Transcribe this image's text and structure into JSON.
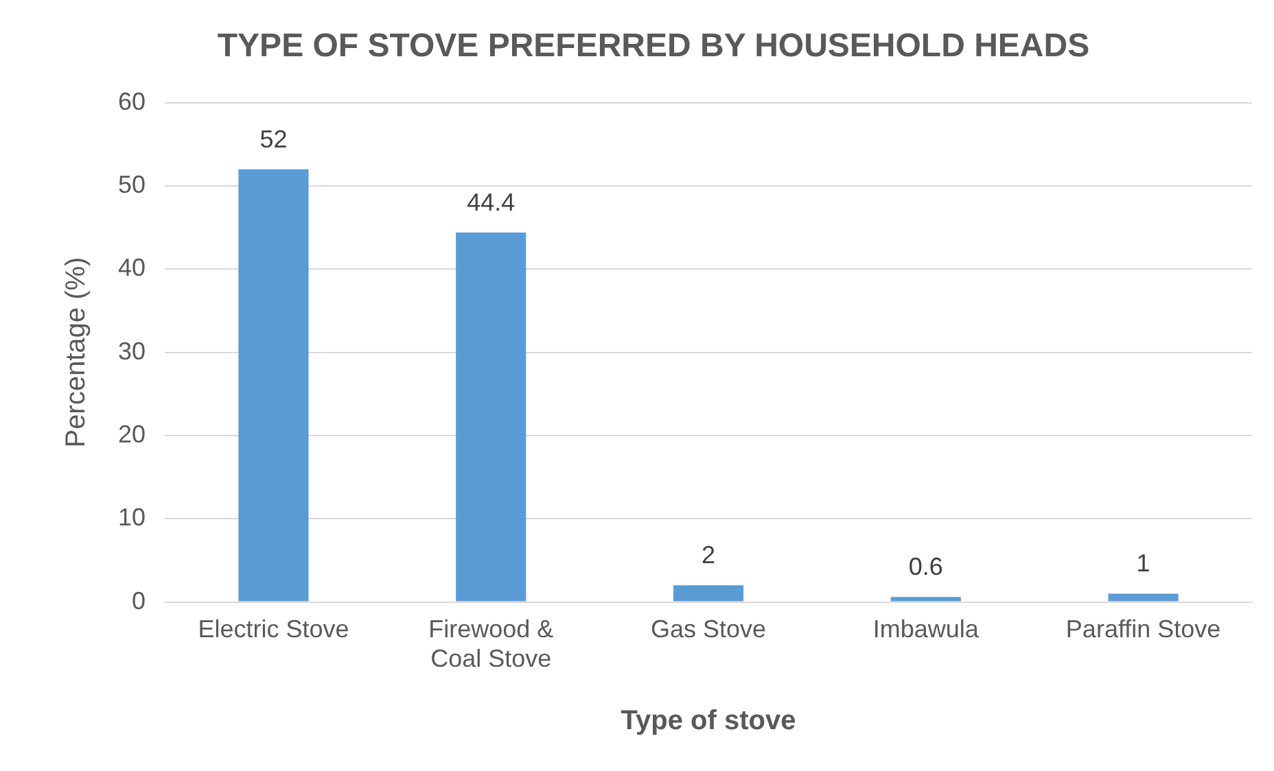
{
  "chart_data": {
    "type": "bar",
    "title": "TYPE OF STOVE PREFERRED BY HOUSEHOLD HEADS",
    "xlabel": "Type of stove",
    "ylabel": "Percentage (%)",
    "categories": [
      "Electric Stove",
      "Firewood & Coal Stove",
      "Gas Stove",
      "Imbawula",
      "Paraffin Stove"
    ],
    "values": [
      52,
      44.4,
      2,
      0.6,
      1
    ],
    "color": "#5b9bd5",
    "ylim": [
      0,
      60
    ],
    "yticks": [
      0,
      10,
      20,
      30,
      40,
      50,
      60
    ],
    "grid": "y",
    "legend": false,
    "data_labels": true
  }
}
